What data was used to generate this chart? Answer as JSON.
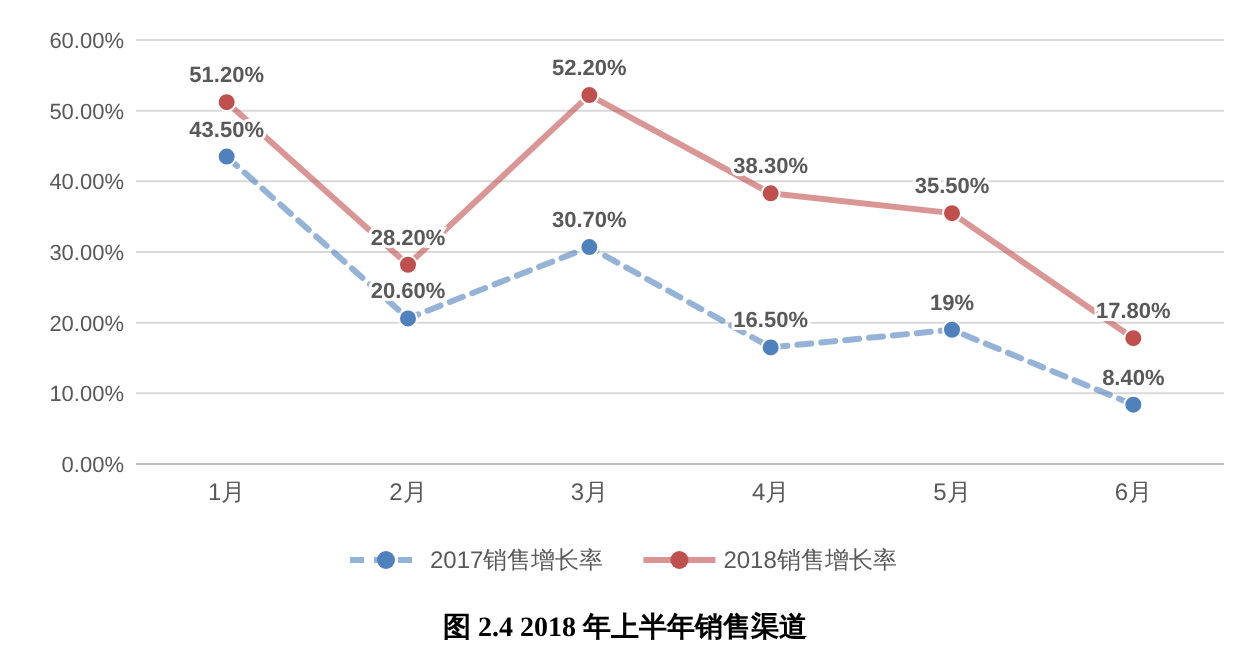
{
  "chart_data": {
    "type": "line",
    "categories": [
      "1月",
      "2月",
      "3月",
      "4月",
      "5月",
      "6月"
    ],
    "series": [
      {
        "name": "2017销售增长率",
        "color": "#4f81bd",
        "line_style": "dashed",
        "values": [
          43.5,
          20.6,
          30.7,
          16.5,
          19,
          8.4
        ],
        "value_labels": [
          "43.50%",
          "20.60%",
          "30.70%",
          "16.50%",
          "19%",
          "8.40%"
        ]
      },
      {
        "name": "2018销售增长率",
        "color": "#c0504d",
        "line_style": "solid",
        "values": [
          51.2,
          28.2,
          52.2,
          38.3,
          35.5,
          17.8
        ],
        "value_labels": [
          "51.20%",
          "28.20%",
          "52.20%",
          "38.30%",
          "35.50%",
          "17.80%"
        ]
      }
    ],
    "ylim": [
      0,
      60
    ],
    "yticks": [
      {
        "value": 0,
        "label": "0.00%"
      },
      {
        "value": 10,
        "label": "10.00%"
      },
      {
        "value": 20,
        "label": "20.00%"
      },
      {
        "value": 30,
        "label": "30.00%"
      },
      {
        "value": 40,
        "label": "40.00%"
      },
      {
        "value": 50,
        "label": "50.00%"
      },
      {
        "value": 60,
        "label": "60.00%"
      }
    ],
    "grid": "y",
    "legend": "bottom",
    "marker": "circle",
    "annotations": [
      "图 2.4    2018 年上半年销售渠道"
    ]
  }
}
